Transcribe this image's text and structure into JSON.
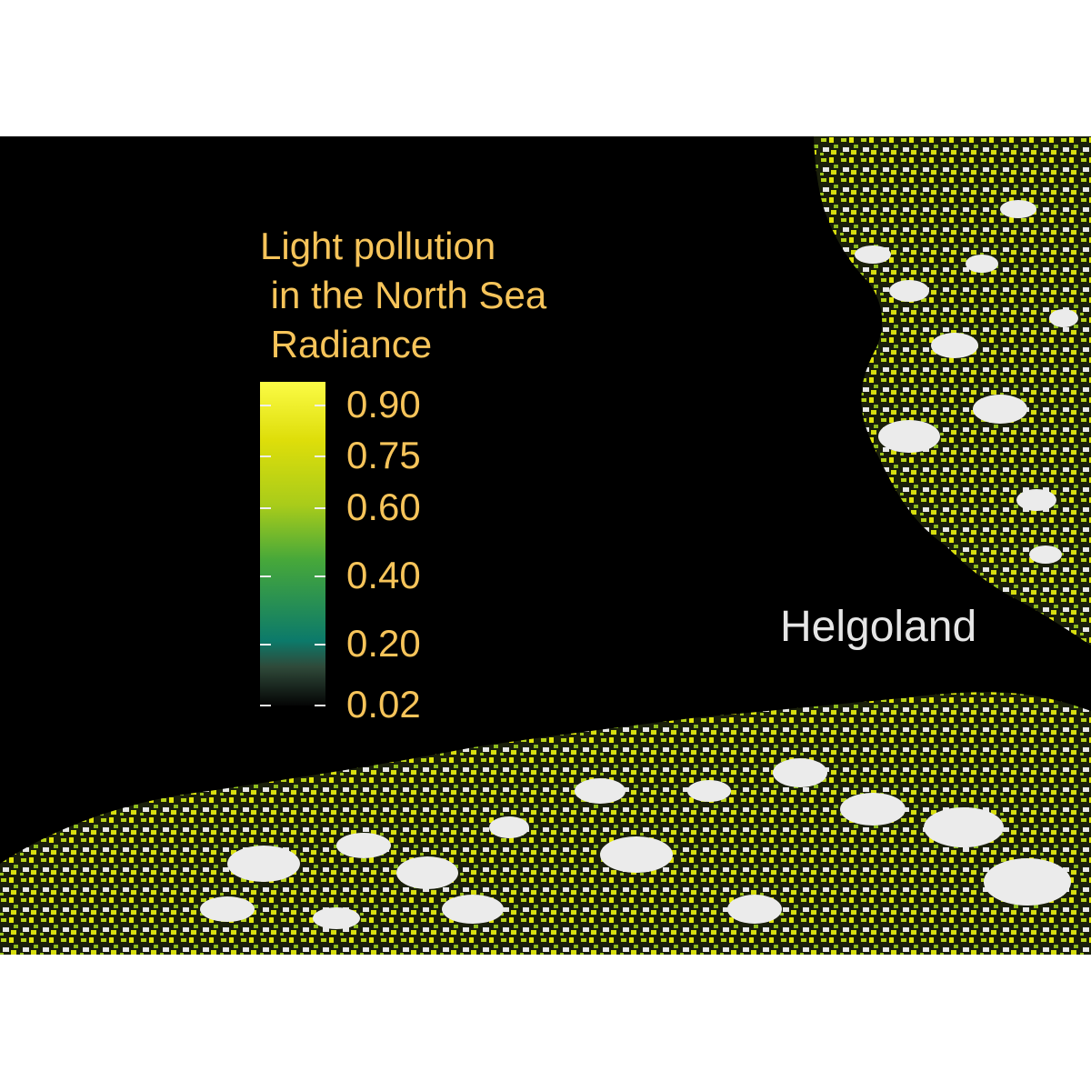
{
  "legend": {
    "title_lines": [
      "Light pollution",
      " in the North Sea",
      " Radiance"
    ],
    "ticks": [
      {
        "label": "0.90",
        "value": 0.9
      },
      {
        "label": "0.75",
        "value": 0.75
      },
      {
        "label": "0.60",
        "value": 0.6
      },
      {
        "label": "0.40",
        "value": 0.4
      },
      {
        "label": "0.20",
        "value": 0.2
      },
      {
        "label": "0.02",
        "value": 0.02
      }
    ],
    "range": [
      0.02,
      0.97
    ],
    "colors": {
      "low": "#050505",
      "dark": "#2f4a3a",
      "teal": "#0c7a6a",
      "green": "#47a83a",
      "lime": "#a9cc1a",
      "yellow": "#dede0a",
      "bright": "#fbfb45",
      "text": "#f6c45a",
      "saturated": "#ebebeb"
    }
  },
  "labels": {
    "place": "Helgoland"
  },
  "colors": {
    "background": "#000000",
    "page": "#ffffff",
    "place_text": "#e6e6e6"
  }
}
